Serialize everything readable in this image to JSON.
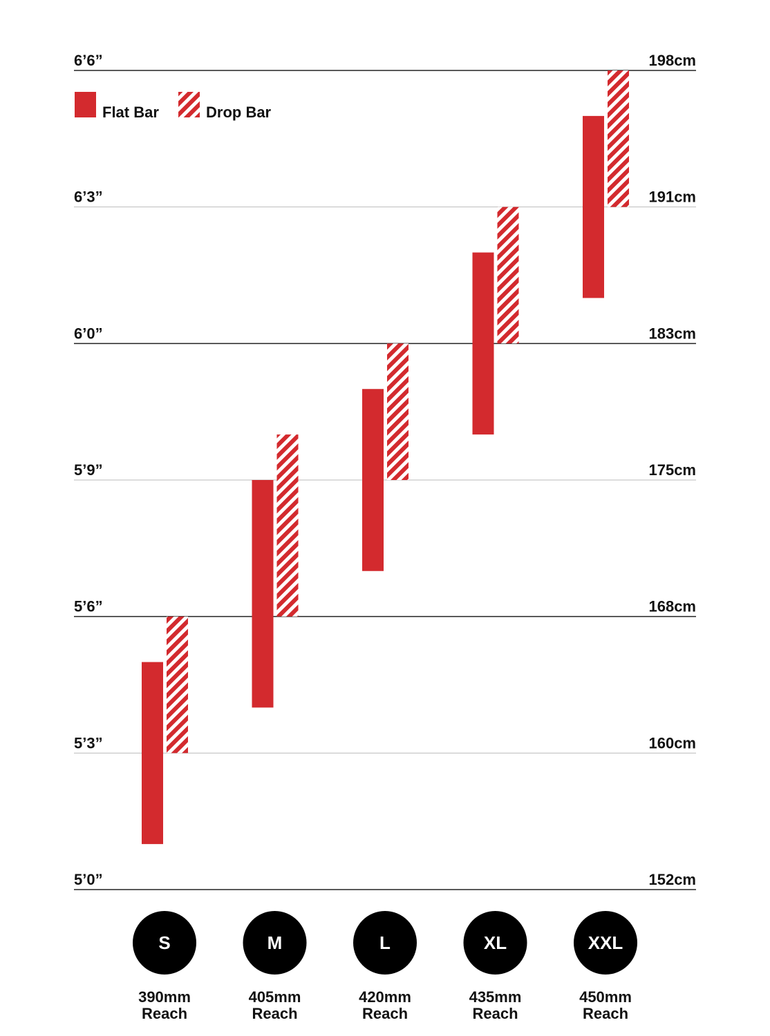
{
  "chart_data": {
    "type": "range-bar",
    "categories": [
      "S",
      "M",
      "L",
      "XL",
      "XXL"
    ],
    "reach": [
      "390mm",
      "405mm",
      "420mm",
      "435mm",
      "450mm"
    ],
    "reach_label": "Reach",
    "series": [
      {
        "name": "Flat Bar",
        "color": "#d32a2e",
        "pattern": "solid",
        "values": [
          [
            61,
            65
          ],
          [
            64,
            69
          ],
          [
            67,
            71
          ],
          [
            70,
            74
          ],
          [
            73,
            77
          ]
        ]
      },
      {
        "name": "Drop Bar",
        "color": "#d32a2e",
        "pattern": "hatched",
        "values": [
          [
            63,
            66
          ],
          [
            66,
            70
          ],
          [
            69,
            72
          ],
          [
            72,
            75
          ],
          [
            75,
            78
          ]
        ]
      }
    ],
    "ylim": [
      60,
      78
    ],
    "yticks": [
      {
        "value": 60,
        "label": "5’0”"
      },
      {
        "value": 63,
        "label": "5’3”"
      },
      {
        "value": 66,
        "label": "5’6”"
      },
      {
        "value": 69,
        "label": "5’9”"
      },
      {
        "value": 72,
        "label": "6’0”"
      },
      {
        "value": 75,
        "label": "6’3”"
      },
      {
        "value": 78,
        "label": "6’6”"
      }
    ],
    "y2lim": [
      152.4,
      198.12
    ],
    "y2ticks": [
      {
        "value": 152.4,
        "label": "152cm"
      },
      {
        "value": 160.02,
        "label": "160cm"
      },
      {
        "value": 167.64,
        "label": "168cm"
      },
      {
        "value": 175.26,
        "label": "175cm"
      },
      {
        "value": 182.88,
        "label": "183cm"
      },
      {
        "value": 190.5,
        "label": "191cm"
      },
      {
        "value": 198.12,
        "label": "198cm"
      }
    ],
    "grid": true,
    "legend": "top-left"
  }
}
